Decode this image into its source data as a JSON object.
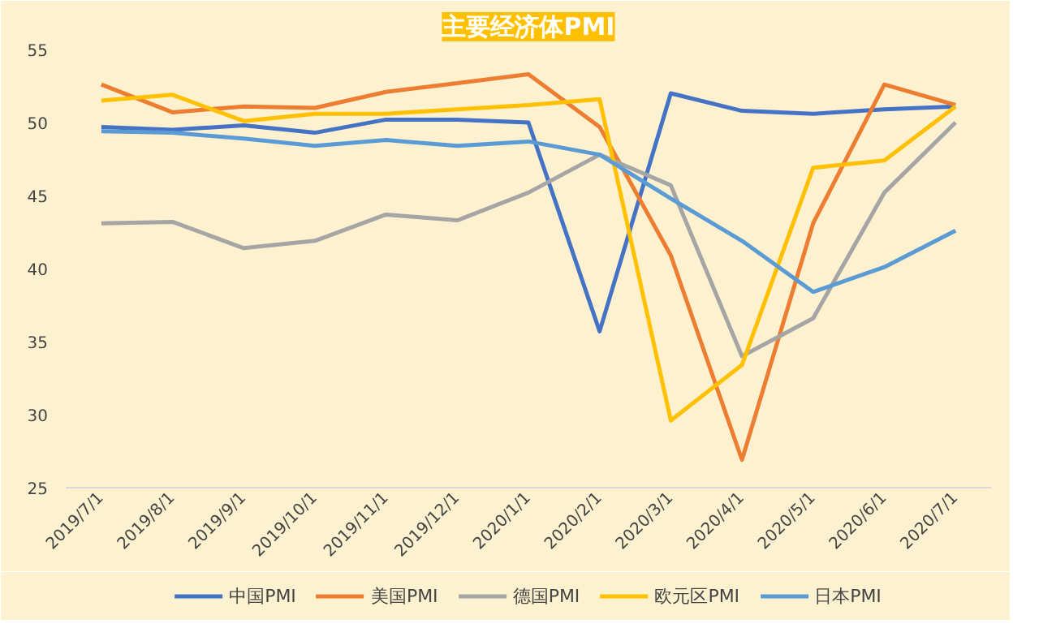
{
  "chart_data": {
    "type": "line",
    "title": "主要经济体PMI",
    "categories": [
      "2019/7/1",
      "2019/8/1",
      "2019/9/1",
      "2019/10/1",
      "2019/11/1",
      "2019/12/1",
      "2020/1/1",
      "2020/2/1",
      "2020/3/1",
      "2020/4/1",
      "2020/5/1",
      "2020/6/1",
      "2020/7/1"
    ],
    "series": [
      {
        "name": "中国PMI",
        "color": "#4472c4",
        "values": [
          49.7,
          49.5,
          49.8,
          49.3,
          50.2,
          50.2,
          50.0,
          35.7,
          52.0,
          50.8,
          50.6,
          50.9,
          51.1
        ]
      },
      {
        "name": "美国PMI",
        "color": "#ed7d31",
        "values": [
          52.6,
          50.7,
          51.1,
          51.0,
          52.1,
          52.7,
          53.3,
          49.7,
          40.9,
          26.9,
          43.1,
          52.6,
          51.2
        ]
      },
      {
        "name": "德国PMI",
        "color": "#a5a5a5",
        "values": [
          43.1,
          43.2,
          41.4,
          41.9,
          43.7,
          43.3,
          45.2,
          47.8,
          45.7,
          34.0,
          36.6,
          45.2,
          50.0
        ]
      },
      {
        "name": "欧元区PMI",
        "color": "#ffc000",
        "values": [
          51.5,
          51.9,
          50.1,
          50.6,
          50.6,
          50.9,
          51.2,
          51.6,
          29.6,
          33.4,
          46.9,
          47.4,
          51.1
        ]
      },
      {
        "name": "日本PMI",
        "color": "#5b9bd5",
        "values": [
          49.4,
          49.3,
          48.9,
          48.4,
          48.8,
          48.4,
          48.7,
          47.8,
          44.8,
          41.9,
          38.4,
          40.1,
          42.6
        ]
      }
    ],
    "ylim": [
      25,
      55
    ],
    "yticks": [
      25,
      30,
      35,
      40,
      45,
      50,
      55
    ],
    "grid": false,
    "legend": "bottom",
    "marker": "none",
    "line_style": "solid"
  }
}
